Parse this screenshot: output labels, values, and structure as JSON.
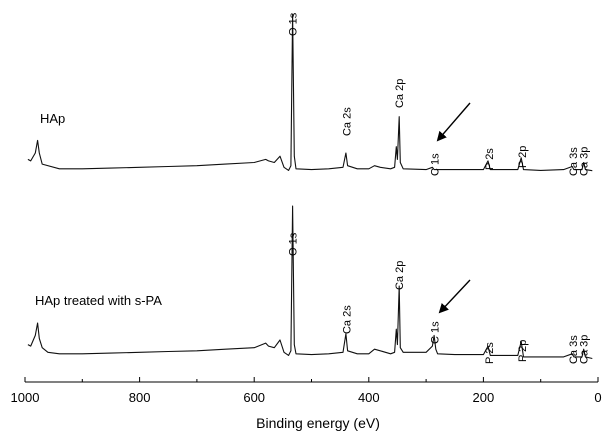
{
  "chart_data": {
    "type": "line",
    "xlabel": "Binding energy (eV)",
    "ylabel": "",
    "xlim": [
      1000,
      0
    ],
    "x_reversed": true,
    "x_ticks": [
      1000,
      800,
      600,
      400,
      200,
      0
    ],
    "x_tick_labels": [
      "1000",
      "800",
      "600",
      "400",
      "200",
      "0"
    ],
    "grid": false,
    "series": [
      {
        "name": "HAp",
        "panel": "top",
        "points": [
          [
            995,
            0.08
          ],
          [
            990,
            0.07
          ],
          [
            982,
            0.12
          ],
          [
            978,
            0.2
          ],
          [
            975,
            0.12
          ],
          [
            970,
            0.05
          ],
          [
            940,
            0.02
          ],
          [
            900,
            0.02
          ],
          [
            850,
            0.025
          ],
          [
            800,
            0.03
          ],
          [
            750,
            0.035
          ],
          [
            700,
            0.04
          ],
          [
            650,
            0.05
          ],
          [
            600,
            0.06
          ],
          [
            580,
            0.08
          ],
          [
            575,
            0.07
          ],
          [
            565,
            0.06
          ],
          [
            555,
            0.1
          ],
          [
            548,
            0.03
          ],
          [
            540,
            0.01
          ],
          [
            536,
            0.04
          ],
          [
            533,
            1.0
          ],
          [
            530,
            0.1
          ],
          [
            527,
            0.02
          ],
          [
            500,
            0.015
          ],
          [
            470,
            0.02
          ],
          [
            445,
            0.03
          ],
          [
            440,
            0.12
          ],
          [
            437,
            0.04
          ],
          [
            420,
            0.02
          ],
          [
            400,
            0.02
          ],
          [
            390,
            0.04
          ],
          [
            380,
            0.03
          ],
          [
            362,
            0.02
          ],
          [
            355,
            0.03
          ],
          [
            352,
            0.16
          ],
          [
            350,
            0.08
          ],
          [
            347,
            0.35
          ],
          [
            345,
            0.06
          ],
          [
            340,
            0.02
          ],
          [
            300,
            0.015
          ],
          [
            289,
            0.03
          ],
          [
            286,
            0.015
          ],
          [
            250,
            0.015
          ],
          [
            200,
            0.015
          ],
          [
            192,
            0.07
          ],
          [
            188,
            0.015
          ],
          [
            140,
            0.015
          ],
          [
            134,
            0.09
          ],
          [
            130,
            0.015
          ],
          [
            100,
            0.01
          ],
          [
            60,
            0.015
          ],
          [
            45,
            0.035
          ],
          [
            42,
            0.015
          ],
          [
            28,
            0.015
          ],
          [
            25,
            0.06
          ],
          [
            22,
            0.015
          ],
          [
            10,
            0.008
          ]
        ],
        "peak_labels": [
          {
            "text": "O 1s",
            "x": 533
          },
          {
            "text": "Ca 2s",
            "x": 439
          },
          {
            "text": "Ca 2p",
            "x": 347
          },
          {
            "text": "C 1s",
            "x": 285
          },
          {
            "text": "P 2s",
            "x": 190
          },
          {
            "text": "P 2p",
            "x": 133
          },
          {
            "text": "Ca 3s",
            "x": 44
          },
          {
            "text": "Ca 3p",
            "x": 25
          }
        ]
      },
      {
        "name": "HAp treated with s-PA",
        "panel": "bottom",
        "points": [
          [
            995,
            0.1
          ],
          [
            990,
            0.09
          ],
          [
            982,
            0.16
          ],
          [
            978,
            0.24
          ],
          [
            975,
            0.14
          ],
          [
            970,
            0.08
          ],
          [
            960,
            0.05
          ],
          [
            940,
            0.04
          ],
          [
            900,
            0.04
          ],
          [
            850,
            0.045
          ],
          [
            800,
            0.05
          ],
          [
            750,
            0.055
          ],
          [
            700,
            0.06
          ],
          [
            650,
            0.07
          ],
          [
            600,
            0.08
          ],
          [
            580,
            0.11
          ],
          [
            575,
            0.09
          ],
          [
            565,
            0.08
          ],
          [
            555,
            0.13
          ],
          [
            548,
            0.05
          ],
          [
            540,
            0.03
          ],
          [
            536,
            0.06
          ],
          [
            533,
            1.0
          ],
          [
            530,
            0.1
          ],
          [
            527,
            0.04
          ],
          [
            500,
            0.035
          ],
          [
            470,
            0.04
          ],
          [
            445,
            0.05
          ],
          [
            440,
            0.17
          ],
          [
            437,
            0.06
          ],
          [
            420,
            0.04
          ],
          [
            400,
            0.04
          ],
          [
            390,
            0.07
          ],
          [
            380,
            0.06
          ],
          [
            362,
            0.04
          ],
          [
            355,
            0.05
          ],
          [
            352,
            0.2
          ],
          [
            350,
            0.1
          ],
          [
            347,
            0.48
          ],
          [
            345,
            0.08
          ],
          [
            340,
            0.05
          ],
          [
            300,
            0.05
          ],
          [
            289,
            0.09
          ],
          [
            286,
            0.16
          ],
          [
            283,
            0.07
          ],
          [
            280,
            0.04
          ],
          [
            250,
            0.035
          ],
          [
            200,
            0.035
          ],
          [
            192,
            0.09
          ],
          [
            188,
            0.03
          ],
          [
            140,
            0.03
          ],
          [
            134,
            0.12
          ],
          [
            130,
            0.02
          ],
          [
            100,
            0.02
          ],
          [
            60,
            0.02
          ],
          [
            45,
            0.04
          ],
          [
            42,
            0.02
          ],
          [
            28,
            0.02
          ],
          [
            25,
            0.07
          ],
          [
            22,
            0.02
          ],
          [
            10,
            0.01
          ]
        ],
        "peak_labels": [
          {
            "text": "O 1s",
            "x": 533
          },
          {
            "text": "Ca 2s",
            "x": 439
          },
          {
            "text": "Ca 2p",
            "x": 347
          },
          {
            "text": "C 1s",
            "x": 285
          },
          {
            "text": "P 2s",
            "x": 190
          },
          {
            "text": "P 2p",
            "x": 133
          },
          {
            "text": "Ca 3s",
            "x": 44
          },
          {
            "text": "Ca 3p",
            "x": 25
          }
        ]
      }
    ],
    "annotations": [
      {
        "type": "arrow",
        "panel": "top",
        "points_to": "C 1s"
      },
      {
        "type": "arrow",
        "panel": "bottom",
        "points_to": "C 1s"
      }
    ]
  }
}
